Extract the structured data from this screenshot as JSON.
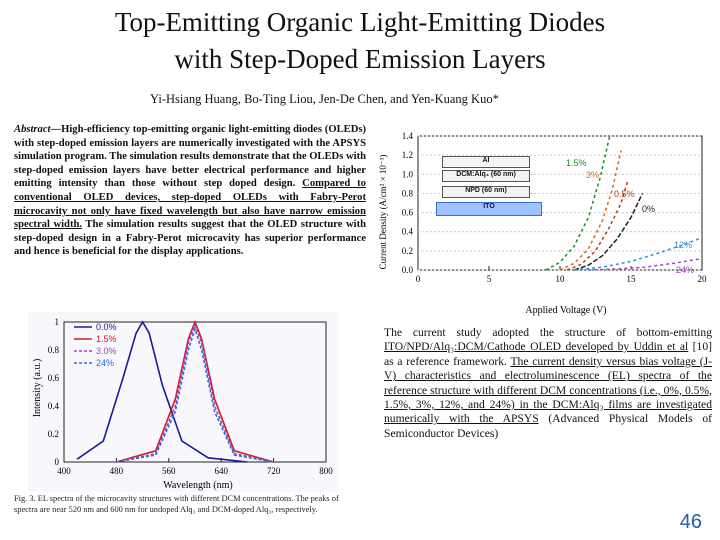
{
  "title": {
    "line1": "Top-Emitting Organic Light-Emitting Diodes",
    "line2": "with Step-Doped Emission Layers"
  },
  "authors": "Yi-Hsiang Huang, Bo-Ting Liou, Jen-De Chen, and Yen-Kuang Kuo*",
  "abstract": {
    "lead": "Abstract",
    "p1": "—High-efficiency top-emitting organic light-emitting diodes (OLEDs) with step-doped emission layers are numerically investigated with the APSYS simulation program. The simulation results demonstrate that the OLEDs with step-doped emission layers have better electrical performance and higher emitting intensity than those without step doped design. ",
    "u1": "Compared to conventional OLED devices, step-doped OLEDs with Fabry-Perot microcavity not only have fixed wavelength but also have narrow emission spectral width.",
    "p2": " The simulation results suggest that the OLED structure with step-doped design in a Fabry-Perot microcavity has superior performance and hence is beneficial for the display applications."
  },
  "device_layers": {
    "al": "Al",
    "dcm": "DCM:Alq₃ (60 nm)",
    "npd": "NPD (60 nm)",
    "ito": "ITO"
  },
  "chart_data": [
    {
      "type": "line",
      "title": "",
      "xlabel": "Applied Voltage (V)",
      "ylabel": "Current Density (A/cm² × 10⁻³)",
      "xlim": [
        0,
        20
      ],
      "ylim": [
        0,
        1.4
      ],
      "xticks": [
        "0",
        "5",
        "10",
        "15",
        "20"
      ],
      "yticks": [
        "0.0",
        "0.2",
        "0.4",
        "0.6",
        "0.8",
        "1.0",
        "1.2",
        "1.4"
      ],
      "series": [
        {
          "name": "1.5%",
          "color": "#1b8a2a",
          "x": [
            9,
            10,
            11,
            12,
            12.8,
            13.5
          ],
          "y": [
            0,
            0.08,
            0.25,
            0.55,
            0.95,
            1.4
          ]
        },
        {
          "name": "3%",
          "color": "#d46a1a",
          "x": [
            10,
            11,
            12,
            13,
            13.7,
            14.3
          ],
          "y": [
            0,
            0.07,
            0.22,
            0.52,
            0.85,
            1.25
          ]
        },
        {
          "name": "0.5%",
          "color": "#b33a10",
          "x": [
            10.5,
            11.5,
            12.5,
            13.5,
            14.3,
            14.8
          ],
          "y": [
            0,
            0.06,
            0.2,
            0.45,
            0.7,
            0.95
          ]
        },
        {
          "name": "0%",
          "color": "#222222",
          "x": [
            11,
            12,
            13,
            14,
            15,
            15.8
          ],
          "y": [
            0,
            0.05,
            0.15,
            0.32,
            0.55,
            0.8
          ]
        },
        {
          "name": "12%",
          "color": "#2a8fd6",
          "x": [
            11,
            13,
            15,
            17,
            19,
            20
          ],
          "y": [
            0,
            0.03,
            0.09,
            0.18,
            0.28,
            0.34
          ]
        },
        {
          "name": "24%",
          "color": "#a040c0",
          "x": [
            12,
            14,
            16,
            18,
            20
          ],
          "y": [
            0,
            0.01,
            0.03,
            0.07,
            0.12
          ]
        }
      ]
    },
    {
      "type": "line",
      "title": "",
      "xlabel": "Wavelength (nm)",
      "ylabel": "Intensity (a.u.)",
      "xlim": [
        400,
        800
      ],
      "ylim": [
        0,
        1
      ],
      "xticks": [
        "400",
        "480",
        "560",
        "640",
        "720",
        "800"
      ],
      "yticks": [
        "0",
        "0.2",
        "0.4",
        "0.6",
        "0.8",
        "1"
      ],
      "series": [
        {
          "name": "0.0%",
          "color": "#1a1a99",
          "x": [
            420,
            460,
            490,
            510,
            520,
            530,
            550,
            580,
            620,
            680
          ],
          "y": [
            0.02,
            0.15,
            0.6,
            0.92,
            1.0,
            0.92,
            0.55,
            0.15,
            0.03,
            0.0
          ]
        },
        {
          "name": "1.5%",
          "color": "#d21a2a",
          "x": [
            480,
            540,
            570,
            590,
            600,
            610,
            630,
            660,
            720
          ],
          "y": [
            0.0,
            0.08,
            0.45,
            0.88,
            1.0,
            0.88,
            0.45,
            0.08,
            0.0
          ]
        },
        {
          "name": "3.0%",
          "color": "#a040c0",
          "x": [
            480,
            540,
            570,
            590,
            600,
            610,
            630,
            660,
            720
          ],
          "y": [
            0.0,
            0.06,
            0.4,
            0.85,
            0.98,
            0.85,
            0.4,
            0.06,
            0.0
          ]
        },
        {
          "name": "24%",
          "color": "#2a6fd6",
          "x": [
            480,
            540,
            570,
            590,
            600,
            610,
            630,
            660,
            720
          ],
          "y": [
            0.0,
            0.05,
            0.36,
            0.8,
            0.95,
            0.8,
            0.36,
            0.05,
            0.0
          ]
        }
      ]
    }
  ],
  "caption": "Fig. 3. EL spectra of the microcavity structures with different DCM concentrations. The peaks of spectra are near 520 nm and 600 nm for undoped Alq₃ and DCM-doped Alq₃, respectively.",
  "study": {
    "s1": "The current study adopted the structure of bottom-emitting ",
    "u1": "ITO/NPD/Alq₃:DCM/Cathode OLED developed by Uddin et al",
    "s2": " [10] as a reference framework. ",
    "u2": "The current density versus bias voltage (J-V) characteristics and electroluminescence (EL) spectra of the reference structure with different DCM concentrations (i.e., 0%, 0.5%, 1.5%, 3%, 12%, and 24%) in the DCM:Alq₃ films are investigated numerically with the APSYS",
    "s3": " (Advanced Physical Models of Semiconductor Devices)"
  },
  "page_number": "46"
}
